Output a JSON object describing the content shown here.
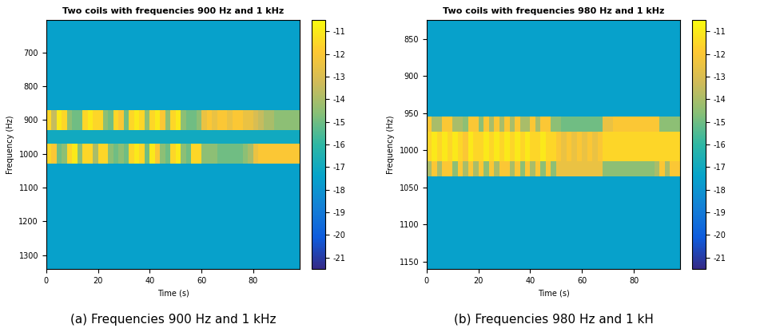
{
  "chart_data": [
    {
      "type": "heatmap",
      "title": "Two coils with frequencies 900 Hz and 1 kHz",
      "x_label": "Time (s)",
      "y_label": "Frequency (Hz)",
      "caption": "(a) Frequencies 900 Hz and 1 kHz",
      "xlim": [
        0,
        98
      ],
      "xticks": [
        0,
        20,
        40,
        60,
        80
      ],
      "ylim": [
        1340,
        605
      ],
      "yticks": [
        700,
        800,
        900,
        1000,
        1100,
        1200,
        1300
      ],
      "x_edges": [
        0,
        2,
        4,
        6,
        8,
        10,
        12,
        14,
        16,
        18,
        20,
        22,
        24,
        26,
        28,
        30,
        32,
        34,
        36,
        38,
        40,
        42,
        44,
        46,
        48,
        50,
        52,
        54,
        56,
        58,
        60,
        62,
        64,
        66,
        68,
        70,
        72,
        74,
        76,
        78,
        80,
        82,
        84,
        86,
        88,
        90,
        92,
        94,
        96,
        98
      ],
      "y_edges": [
        605,
        870,
        930,
        970,
        1030,
        1340
      ],
      "cells": [
        [
          -17.5,
          -17.5,
          -17.5,
          -17.5,
          -17.5,
          -17.5,
          -17.5,
          -17.5,
          -17.5,
          -17.5,
          -17.5,
          -17.5,
          -17.5,
          -17.5,
          -17.5,
          -17.5,
          -17.5,
          -17.5,
          -17.5,
          -17.5,
          -17.5,
          -17.5,
          -17.5,
          -17.5,
          -17.5,
          -17.5,
          -17.5,
          -17.5,
          -17.5,
          -17.5,
          -17.5,
          -17.5,
          -17.5,
          -17.5,
          -17.5,
          -17.5,
          -17.5,
          -17.5,
          -17.5,
          -17.5,
          -17.5,
          -17.5,
          -17.5,
          -17.5,
          -17.5,
          -17.5,
          -17.5,
          -17.5,
          -17.5
        ],
        [
          -11.5,
          -13.5,
          -11,
          -11.5,
          -14.5,
          -15,
          -15,
          -11.5,
          -11,
          -11.5,
          -11.5,
          -14.5,
          -15,
          -11.5,
          -12,
          -15,
          -11.5,
          -11,
          -11.5,
          -14.5,
          -11.5,
          -11,
          -12,
          -14.5,
          -11.5,
          -11,
          -14.5,
          -15,
          -15,
          -14.5,
          -12.5,
          -12,
          -12.5,
          -12,
          -12,
          -12.5,
          -12,
          -12,
          -12.5,
          -12.5,
          -13,
          -13.5,
          -14,
          -14,
          -14.5,
          -14.5,
          -14.5,
          -14.5,
          -14.5
        ],
        [
          -17,
          -17,
          -17,
          -17,
          -17,
          -17,
          -17,
          -17,
          -17,
          -17,
          -17,
          -17,
          -17,
          -17,
          -17,
          -17,
          -17,
          -17,
          -17,
          -17,
          -17,
          -17,
          -17,
          -17,
          -17,
          -17,
          -17,
          -17,
          -17,
          -17,
          -17,
          -17,
          -17,
          -17,
          -17,
          -17,
          -17,
          -17,
          -17,
          -17,
          -17,
          -17,
          -17,
          -17,
          -17,
          -17,
          -17,
          -17,
          -17
        ],
        [
          -11.5,
          -12,
          -15,
          -14.5,
          -11.5,
          -11,
          -14.5,
          -11.5,
          -11.5,
          -14,
          -11.5,
          -11.5,
          -14.5,
          -15,
          -14.5,
          -15,
          -11.5,
          -11,
          -11.5,
          -15,
          -11,
          -12,
          -14.5,
          -15,
          -11.5,
          -11,
          -14.5,
          -15,
          -11.5,
          -11.5,
          -14.5,
          -14.5,
          -14.5,
          -15,
          -15,
          -15,
          -15,
          -15,
          -14.5,
          -14,
          -12.5,
          -12,
          -12,
          -12,
          -12,
          -12,
          -12,
          -12,
          -12
        ],
        [
          -17.5,
          -17.5,
          -17.5,
          -17.5,
          -17.5,
          -17.5,
          -17.5,
          -17.5,
          -17.5,
          -17.5,
          -17.5,
          -17.5,
          -17.5,
          -17.5,
          -17.5,
          -17.5,
          -17.5,
          -17.5,
          -17.5,
          -17.5,
          -17.5,
          -17.5,
          -17.5,
          -17.5,
          -17.5,
          -17.5,
          -17.5,
          -17.5,
          -17.5,
          -17.5,
          -17.5,
          -17.5,
          -17.5,
          -17.5,
          -17.5,
          -17.5,
          -17.5,
          -17.5,
          -17.5,
          -17.5,
          -17.5,
          -17.5,
          -17.5,
          -17.5,
          -17.5,
          -17.5,
          -17.5,
          -17.5,
          -17.5
        ]
      ],
      "colorbar_range": [
        -21.5,
        -10.5
      ],
      "colorbar_ticks": [
        -21,
        -20,
        -19,
        -18,
        -17,
        -16,
        -15,
        -14,
        -13,
        -12,
        -11
      ]
    },
    {
      "type": "heatmap",
      "title": "Two coils with frequencies 980 Hz and 1 kHz",
      "x_label": "Time (s)",
      "y_label": "Frequency (Hz)",
      "caption": "(b) Frequencies 980 Hz and 1 kH",
      "xlim": [
        0,
        98
      ],
      "xticks": [
        0,
        20,
        40,
        60,
        80
      ],
      "ylim": [
        1160,
        825
      ],
      "yticks": [
        850,
        900,
        950,
        1000,
        1050,
        1100,
        1150
      ],
      "x_edges": [
        0,
        2,
        4,
        6,
        8,
        10,
        12,
        14,
        16,
        18,
        20,
        22,
        24,
        26,
        28,
        30,
        32,
        34,
        36,
        38,
        40,
        42,
        44,
        46,
        48,
        50,
        52,
        54,
        56,
        58,
        60,
        62,
        64,
        66,
        68,
        70,
        72,
        74,
        76,
        78,
        80,
        82,
        84,
        86,
        88,
        90,
        92,
        94,
        96,
        98
      ],
      "y_edges": [
        825,
        955,
        975,
        1015,
        1035,
        1160
      ],
      "cells": [
        [
          -17.5,
          -17.5,
          -17.5,
          -17.5,
          -17.5,
          -17.5,
          -17.5,
          -17.5,
          -17.5,
          -17.5,
          -17.5,
          -17.5,
          -17.5,
          -17.5,
          -17.5,
          -17.5,
          -17.5,
          -17.5,
          -17.5,
          -17.5,
          -17.5,
          -17.5,
          -17.5,
          -17.5,
          -17.5,
          -17.5,
          -17.5,
          -17.5,
          -17.5,
          -17.5,
          -17.5,
          -17.5,
          -17.5,
          -17.5,
          -17.5,
          -17.5,
          -17.5,
          -17.5,
          -17.5,
          -17.5,
          -17.5,
          -17.5,
          -17.5,
          -17.5,
          -17.5,
          -17.5,
          -17.5,
          -17.5,
          -17.5
        ],
        [
          -12,
          -14,
          -14,
          -12,
          -12,
          -14,
          -14,
          -14.5,
          -12,
          -12,
          -14.5,
          -12,
          -14,
          -12,
          -14,
          -12,
          -14,
          -12,
          -14,
          -14,
          -12,
          -14,
          -12,
          -12,
          -14.5,
          -14.5,
          -15,
          -15,
          -15,
          -15,
          -15,
          -15,
          -15,
          -15,
          -12.5,
          -12.5,
          -12,
          -12,
          -12,
          -12,
          -12,
          -12,
          -12,
          -12,
          -12,
          -14.5,
          -14.5,
          -14.5,
          -14.5
        ],
        [
          -11.5,
          -11,
          -11.5,
          -11,
          -11.5,
          -11,
          -11.5,
          -12,
          -11,
          -11.5,
          -11.5,
          -11,
          -11.5,
          -11,
          -11.5,
          -11,
          -11.5,
          -11,
          -11.5,
          -11,
          -11.5,
          -11.5,
          -11,
          -11.5,
          -11.5,
          -12,
          -12.5,
          -12,
          -12.5,
          -12,
          -12.5,
          -12,
          -12.5,
          -12,
          -11.5,
          -11.5,
          -11.5,
          -11.5,
          -11.5,
          -11.5,
          -11.5,
          -11.5,
          -11.5,
          -11.5,
          -11.5,
          -11.5,
          -11.5,
          -11.5,
          -11.5
        ],
        [
          -14,
          -12,
          -14,
          -12,
          -12,
          -14.5,
          -12,
          -14,
          -12,
          -14,
          -12,
          -14.5,
          -12,
          -14,
          -12,
          -12,
          -14,
          -12,
          -14.5,
          -12,
          -14,
          -12,
          -14.5,
          -12,
          -14.5,
          -12.5,
          -12.5,
          -12.5,
          -12.5,
          -12.5,
          -12.5,
          -12.5,
          -12.5,
          -12.5,
          -14.5,
          -14.5,
          -14.5,
          -14.5,
          -14.5,
          -14.5,
          -14.5,
          -14.5,
          -14.5,
          -14.5,
          -14,
          -12,
          -14,
          -12,
          -12
        ],
        [
          -17.5,
          -17.5,
          -17.5,
          -17.5,
          -17.5,
          -17.5,
          -17.5,
          -17.5,
          -17.5,
          -17.5,
          -17.5,
          -17.5,
          -17.5,
          -17.5,
          -17.5,
          -17.5,
          -17.5,
          -17.5,
          -17.5,
          -17.5,
          -17.5,
          -17.5,
          -17.5,
          -17.5,
          -17.5,
          -17.5,
          -17.5,
          -17.5,
          -17.5,
          -17.5,
          -17.5,
          -17.5,
          -17.5,
          -17.5,
          -17.5,
          -17.5,
          -17.5,
          -17.5,
          -17.5,
          -17.5,
          -17.5,
          -17.5,
          -17.5,
          -17.5,
          -17.5,
          -17.5,
          -17.5,
          -17.5,
          -17.5
        ]
      ],
      "colorbar_range": [
        -21.5,
        -10.5
      ],
      "colorbar_ticks": [
        -21,
        -20,
        -19,
        -18,
        -17,
        -16,
        -15,
        -14,
        -13,
        -12,
        -11
      ]
    }
  ]
}
